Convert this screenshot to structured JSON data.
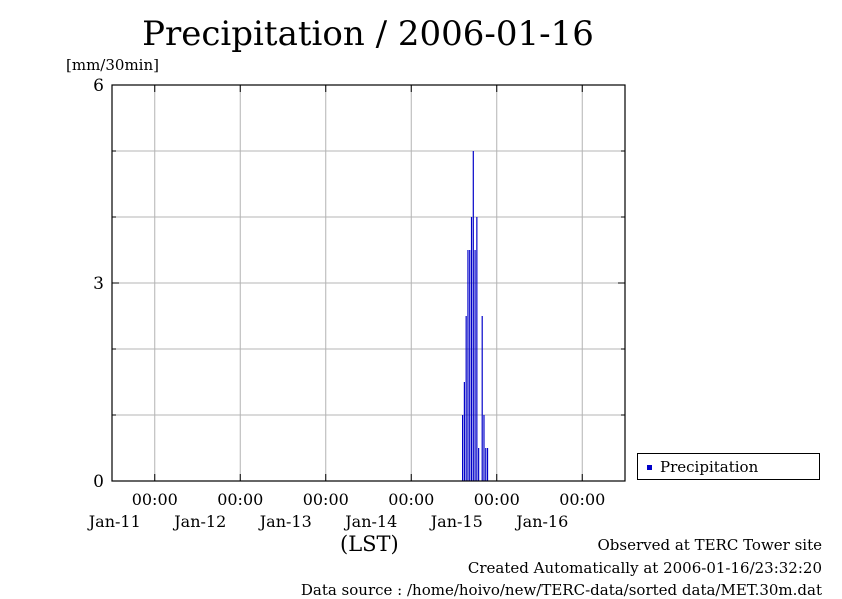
{
  "title": "Precipitation / 2006-01-16",
  "footer": {
    "observed": "Observed at TERC Tower site",
    "created": "Created Automatically at 2006-01-16/23:32:20",
    "source": "Data source : /home/hoivo/new/TERC-data/sorted  data/MET.30m.dat"
  },
  "colors": {
    "series": "#0000c8",
    "grid": "#b4b4b4",
    "axis": "#000000"
  },
  "chart_data": {
    "type": "bar",
    "title": "Precipitation / 2006-01-16",
    "ylabel": "[mm/30min]",
    "xlabel": "(LST)",
    "ylim": [
      0,
      6
    ],
    "yticks": [
      0,
      3,
      6
    ],
    "xlim": [
      "2006-01-10 12:00",
      "2006-01-16 12:00"
    ],
    "xticks": [
      {
        "time": "2006-01-11 00:00",
        "label_time": "00:00",
        "label_date": "Jan-11"
      },
      {
        "time": "2006-01-12 00:00",
        "label_time": "00:00",
        "label_date": "Jan-12"
      },
      {
        "time": "2006-01-13 00:00",
        "label_time": "00:00",
        "label_date": "Jan-13"
      },
      {
        "time": "2006-01-14 00:00",
        "label_time": "00:00",
        "label_date": "Jan-14"
      },
      {
        "time": "2006-01-15 00:00",
        "label_time": "00:00",
        "label_date": "Jan-15"
      },
      {
        "time": "2006-01-16 00:00",
        "label_time": "00:00",
        "label_date": "Jan-16"
      }
    ],
    "grid": true,
    "legend_position": "right-bottom",
    "series": [
      {
        "name": "Precipitation",
        "color": "#0000c8",
        "x": [
          "2006-01-14 14:30",
          "2006-01-14 15:00",
          "2006-01-14 15:30",
          "2006-01-14 16:00",
          "2006-01-14 16:30",
          "2006-01-14 17:00",
          "2006-01-14 17:30",
          "2006-01-14 18:00",
          "2006-01-14 18:30",
          "2006-01-14 19:00",
          "2006-01-14 19:30",
          "2006-01-14 20:00",
          "2006-01-14 20:30",
          "2006-01-14 21:00",
          "2006-01-14 21:30",
          "2006-01-14 22:00"
        ],
        "values": [
          1.0,
          1.5,
          2.5,
          3.5,
          3.5,
          4.0,
          5.0,
          3.5,
          4.0,
          0.5,
          0.0,
          2.5,
          1.0,
          0.5,
          0.5,
          0.0
        ]
      }
    ]
  }
}
